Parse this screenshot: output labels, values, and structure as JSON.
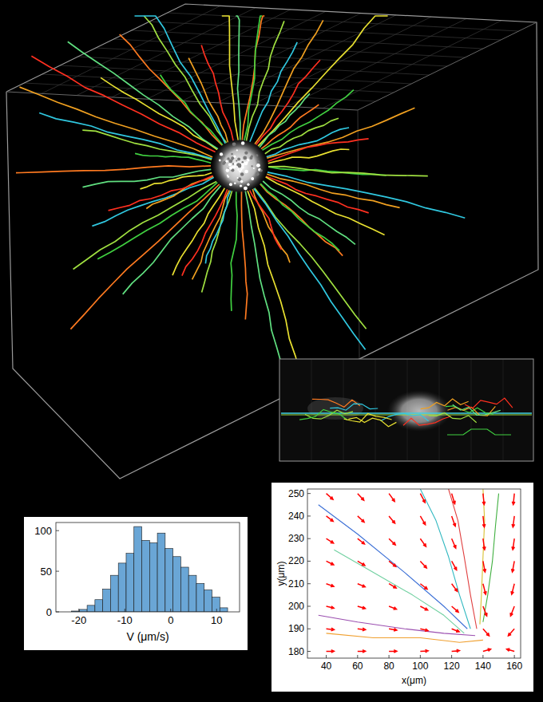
{
  "chart_data": [
    {
      "type": "histogram",
      "xlabel": "V (μm/s)",
      "bins": [
        -21.6,
        -19.9,
        -18.2,
        -16.5,
        -14.8,
        -13.1,
        -11.4,
        -9.7,
        -8,
        -6.3,
        -4.6,
        -2.9,
        -1.2,
        0.5,
        2.2,
        3.9,
        5.6,
        7.3,
        9,
        10.7,
        12.4
      ],
      "values": [
        1,
        3,
        8,
        15,
        28,
        45,
        60,
        72,
        105,
        88,
        85,
        97,
        78,
        68,
        55,
        45,
        35,
        27,
        18,
        5
      ],
      "color": "#6aa6d6",
      "xlim": [
        -25,
        15
      ],
      "xticks": [
        -20,
        -10,
        0,
        10
      ],
      "ylim": [
        0,
        110
      ],
      "yticks": [
        0,
        50,
        100
      ],
      "grid": false
    },
    {
      "type": "quiver",
      "xlabel": "x(μm)",
      "ylabel": "y(μm)",
      "xlim": [
        28,
        164
      ],
      "xticks": [
        40,
        60,
        80,
        100,
        120,
        140,
        160
      ],
      "ylim": [
        177,
        252
      ],
      "yticks": [
        180,
        190,
        200,
        210,
        220,
        230,
        240,
        250
      ],
      "grid": false,
      "series": [
        {
          "type": "quiver",
          "color": "#ff0000",
          "x": [
            40,
            60,
            80,
            100,
            120,
            140,
            160,
            40,
            60,
            80,
            100,
            120,
            140,
            160,
            40,
            60,
            80,
            100,
            120,
            140,
            160,
            40,
            60,
            80,
            100,
            120,
            140,
            160,
            40,
            60,
            80,
            100,
            120,
            140,
            160,
            40,
            60,
            80,
            100,
            120,
            140,
            160,
            40,
            60,
            80,
            100,
            120,
            140,
            160,
            40,
            60,
            80,
            100,
            120,
            140,
            160
          ],
          "y": [
            250,
            250,
            250,
            250,
            250,
            250,
            250,
            240,
            240,
            240,
            240,
            240,
            240,
            240,
            230,
            230,
            230,
            230,
            230,
            230,
            230,
            220,
            220,
            220,
            220,
            220,
            220,
            220,
            210,
            210,
            210,
            210,
            210,
            210,
            210,
            200,
            200,
            200,
            200,
            200,
            200,
            200,
            190,
            190,
            190,
            190,
            190,
            190,
            190,
            180,
            180,
            180,
            180,
            180,
            180,
            180
          ],
          "u": [
            4.3,
            4.0,
            3.6,
            3.0,
            2.0,
            0.7,
            -0.7,
            4.4,
            4.2,
            3.8,
            3.2,
            2.3,
            0.8,
            -0.9,
            4.6,
            4.4,
            4.1,
            3.6,
            2.6,
            1.0,
            -1.0,
            4.7,
            4.6,
            4.4,
            4.0,
            3.1,
            1.3,
            -1.3,
            4.8,
            4.8,
            4.6,
            4.4,
            3.6,
            1.7,
            -1.7,
            4.9,
            4.9,
            4.8,
            4.7,
            4.3,
            2.4,
            -2.4,
            5.0,
            5.0,
            5.0,
            4.9,
            4.8,
            3.9,
            -3.9,
            5.0,
            5.0,
            5.0,
            5.0,
            5.0,
            4.9,
            -4.9
          ],
          "v": [
            -2.6,
            -3.0,
            -3.5,
            -4.0,
            -4.6,
            -4.9,
            -4.9,
            -2.3,
            -2.7,
            -3.2,
            -3.8,
            -4.5,
            -4.9,
            -4.9,
            -2.0,
            -2.4,
            -2.8,
            -3.5,
            -4.2,
            -4.9,
            -4.9,
            -1.6,
            -1.9,
            -2.4,
            -3.0,
            -3.9,
            -4.8,
            -4.8,
            -1.2,
            -1.4,
            -1.9,
            -2.4,
            -3.4,
            -4.7,
            -4.7,
            -0.8,
            -1.0,
            -1.3,
            -1.7,
            -2.6,
            -4.3,
            -4.3,
            -0.4,
            -0.4,
            -0.6,
            -0.8,
            -1.3,
            -3.1,
            -3.1,
            0.1,
            0.1,
            0.1,
            0.2,
            0.3,
            1.0,
            1.0
          ]
        },
        {
          "type": "line",
          "color": "#3b6fd6",
          "x": [
            35,
            60,
            90,
            115,
            130
          ],
          "y": [
            245,
            232,
            215,
            200,
            190
          ]
        },
        {
          "type": "line",
          "color": "#9b4fb0",
          "x": [
            35,
            60,
            90,
            115,
            135
          ],
          "y": [
            196,
            193,
            190,
            188,
            187
          ]
        },
        {
          "type": "line",
          "color": "#f0a030",
          "x": [
            40,
            70,
            100,
            125,
            140
          ],
          "y": [
            188,
            186,
            186,
            184,
            185
          ]
        },
        {
          "type": "line",
          "color": "#30b8c0",
          "x": [
            100,
            110,
            118,
            125,
            132
          ],
          "y": [
            252,
            238,
            222,
            205,
            190
          ]
        },
        {
          "type": "line",
          "color": "#e04040",
          "x": [
            118,
            124,
            128,
            132,
            136
          ],
          "y": [
            252,
            238,
            222,
            205,
            190
          ]
        },
        {
          "type": "line",
          "color": "#d8c030",
          "x": [
            140,
            141,
            140,
            139,
            138
          ],
          "y": [
            252,
            238,
            222,
            205,
            192
          ]
        },
        {
          "type": "line",
          "color": "#40b040",
          "x": [
            150,
            148,
            146,
            143,
            140
          ],
          "y": [
            250,
            236,
            220,
            205,
            193
          ]
        },
        {
          "type": "line",
          "color": "#70d0a0",
          "x": [
            45,
            70,
            95,
            115,
            128
          ],
          "y": [
            225,
            215,
            205,
            196,
            188
          ]
        }
      ]
    }
  ]
}
